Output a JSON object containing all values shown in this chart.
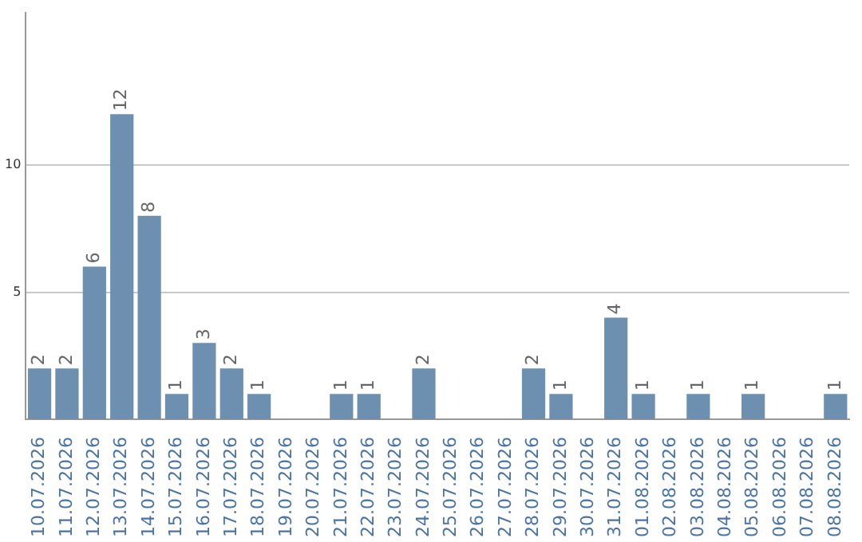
{
  "chart_data": {
    "type": "bar",
    "categories": [
      "10.07.2026",
      "11.07.2026",
      "12.07.2026",
      "13.07.2026",
      "14.07.2026",
      "15.07.2026",
      "16.07.2026",
      "17.07.2026",
      "18.07.2026",
      "19.07.2026",
      "20.07.2026",
      "21.07.2026",
      "22.07.2026",
      "23.07.2026",
      "24.07.2026",
      "25.07.2026",
      "26.07.2026",
      "27.07.2026",
      "28.07.2026",
      "29.07.2026",
      "30.07.2026",
      "31.07.2026",
      "01.08.2026",
      "02.08.2026",
      "03.08.2026",
      "04.08.2026",
      "05.08.2026",
      "06.08.2026",
      "07.08.2026",
      "08.08.2026"
    ],
    "values": [
      2,
      2,
      6,
      12,
      8,
      1,
      3,
      2,
      1,
      0,
      0,
      1,
      1,
      0,
      2,
      0,
      0,
      0,
      2,
      1,
      0,
      4,
      1,
      0,
      1,
      0,
      1,
      0,
      0,
      1
    ],
    "value_labels": [
      "2",
      "2",
      "6",
      "12",
      "8",
      "1",
      "3",
      "2",
      "1",
      null,
      null,
      "1",
      "1",
      null,
      "2",
      null,
      null,
      null,
      "2",
      "1",
      null,
      "4",
      "1",
      null,
      "1",
      null,
      "1",
      null,
      null,
      "1"
    ],
    "color": "#6d8fb0",
    "ylim": [
      0,
      16
    ],
    "yticks": [
      5,
      10
    ],
    "grid": "y",
    "legend": false
  }
}
